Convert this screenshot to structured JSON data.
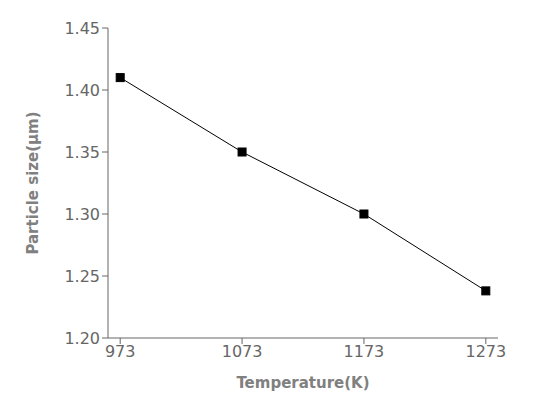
{
  "chart_data": {
    "type": "line",
    "x": [
      973,
      1073,
      1173,
      1273
    ],
    "values": [
      1.41,
      1.35,
      1.3,
      1.238
    ],
    "xlim": [
      963,
      1283
    ],
    "ylim": [
      1.2,
      1.45
    ],
    "xticks": [
      973,
      1073,
      1173,
      1273
    ],
    "yticks": [
      {
        "value": 1.2,
        "label": "1.20"
      },
      1.25,
      {
        "value": 1.3,
        "label": "1.30"
      },
      1.35,
      {
        "value": 1.4,
        "label": "1.40"
      },
      1.45
    ],
    "xlabel": "Temperature(K)",
    "ylabel": "Particle size(μm)",
    "color": "#000000",
    "marker": "square"
  }
}
